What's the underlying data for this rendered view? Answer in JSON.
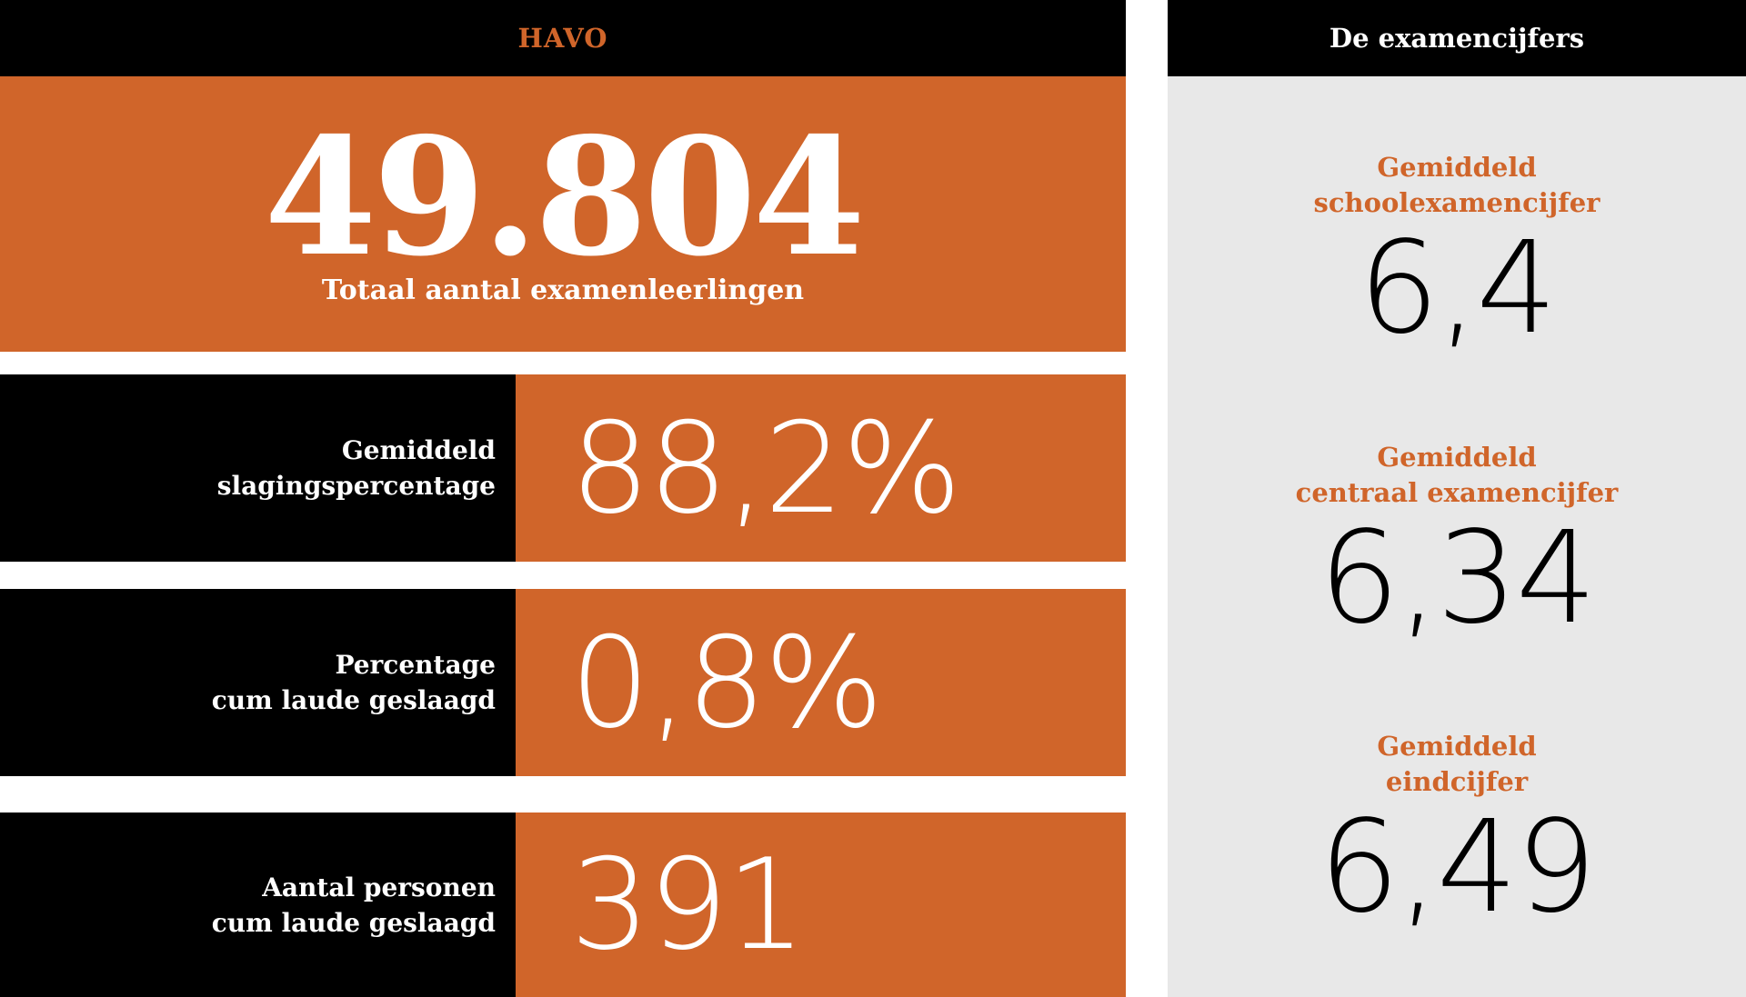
{
  "left": {
    "header": "HAVO",
    "hero": {
      "value": "49.804",
      "label": "Totaal aantal examenleerlingen"
    },
    "rows": [
      {
        "label_line1": "Gemiddeld",
        "label_line2": "slagingspercentage",
        "value": "88,2%"
      },
      {
        "label_line1": "Percentage",
        "label_line2": "cum laude geslaagd",
        "value": "0,8%"
      },
      {
        "label_line1": "Aantal personen",
        "label_line2": "cum laude geslaagd",
        "value": "391"
      }
    ]
  },
  "right": {
    "header": "De examencijfers",
    "metrics": [
      {
        "label_line1": "Gemiddeld",
        "label_line2": "schoolexamencijfer",
        "value": "6,4"
      },
      {
        "label_line1": "Gemiddeld",
        "label_line2": "centraal examencijfer",
        "value": "6,34"
      },
      {
        "label_line1": "Gemiddeld",
        "label_line2": "eindcijfer",
        "value": "6,49"
      }
    ]
  },
  "colors": {
    "accent": "#d0652a",
    "dark": "#000000",
    "panel": "#e8e8e8"
  }
}
